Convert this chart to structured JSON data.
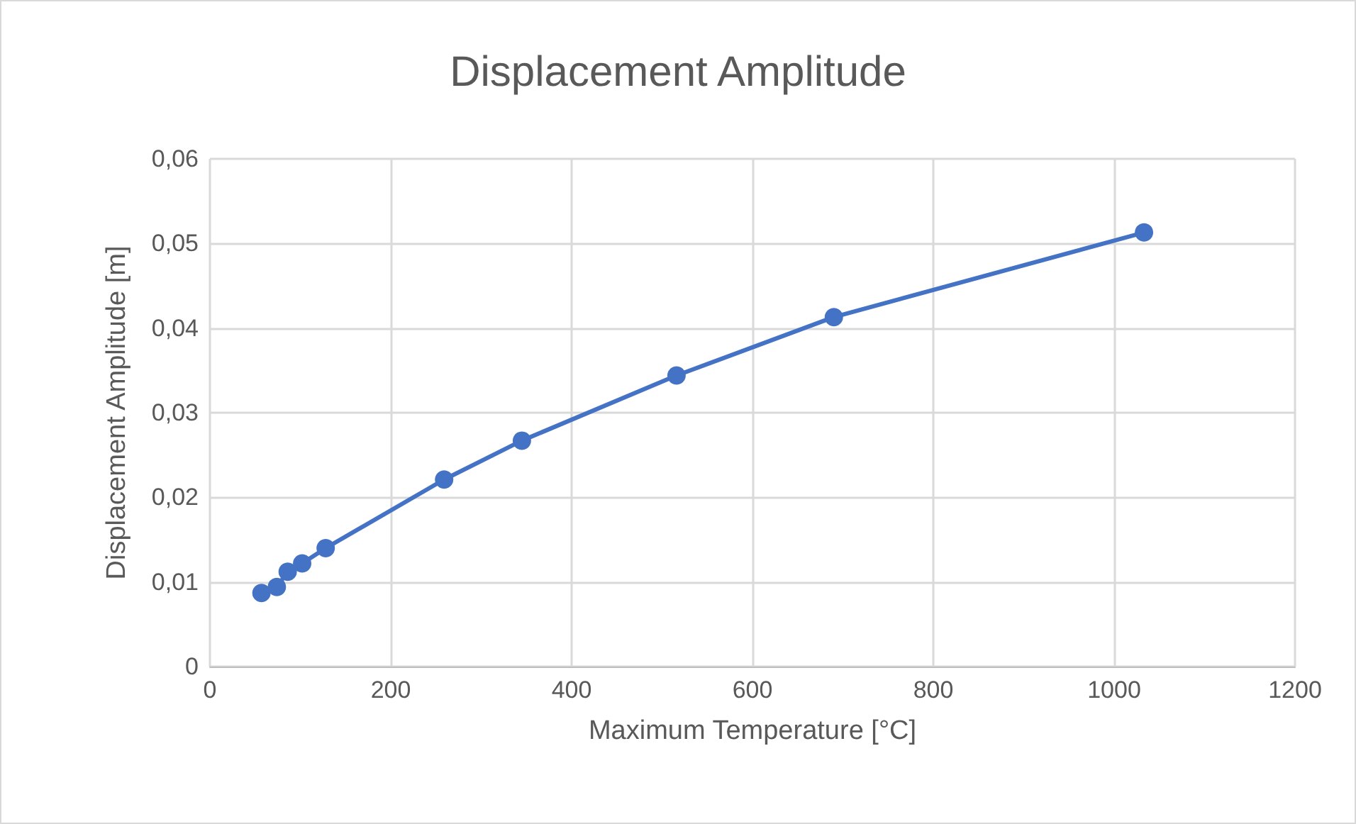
{
  "chart_data": {
    "type": "line",
    "title": "Displacement Amplitude",
    "xlabel": "Maximum Temperature [°C]",
    "ylabel": "Displacement Amplitude [m]",
    "series": [
      {
        "color": "#4472c4",
        "x": [
          57,
          74,
          86,
          102,
          128,
          259,
          345,
          516,
          690,
          1033
        ],
        "values": [
          0.0087,
          0.0094,
          0.0112,
          0.0122,
          0.014,
          0.0221,
          0.0267,
          0.0344,
          0.0413,
          0.0513
        ]
      }
    ],
    "xlim": [
      0,
      1200
    ],
    "xticks": [
      0,
      200,
      400,
      600,
      800,
      1000,
      1200
    ],
    "ylim": [
      0,
      0.06
    ],
    "yticks": [
      {
        "value": 0,
        "label": "0"
      },
      {
        "value": 0.01,
        "label": "0,01"
      },
      {
        "value": 0.02,
        "label": "0,02"
      },
      {
        "value": 0.03,
        "label": "0,03"
      },
      {
        "value": 0.04,
        "label": "0,04"
      },
      {
        "value": 0.05,
        "label": "0,05"
      },
      {
        "value": 0.06,
        "label": "0,06"
      }
    ],
    "grid": true,
    "marker": "circle",
    "line_style": "solid"
  }
}
